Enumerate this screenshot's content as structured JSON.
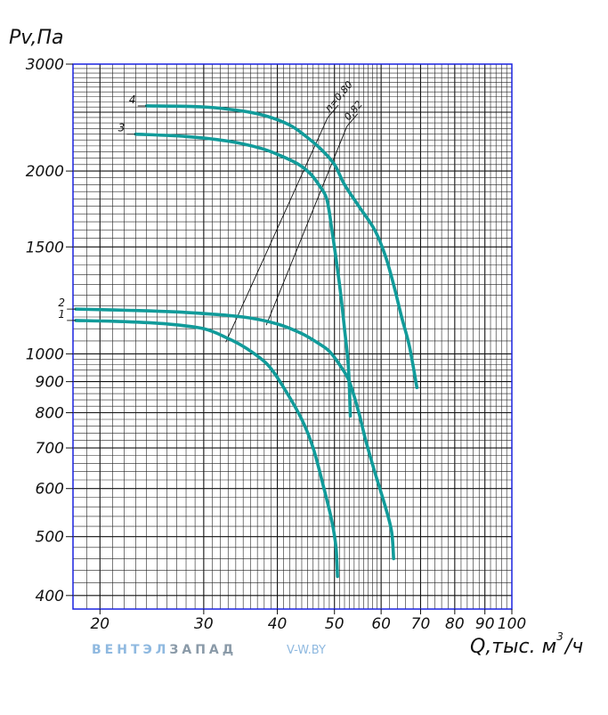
{
  "chart_data": {
    "type": "line",
    "ylabel": "Pv,Па",
    "xlabel": "Q,тыс. м³/ч",
    "xlabel_main": "Q,тыс. м",
    "xlabel_sup": "3",
    "xlabel_tail": "/ч",
    "x_scale": "log",
    "y_scale": "log",
    "xlim": [
      18,
      100
    ],
    "ylim": [
      380,
      3000
    ],
    "grid": true,
    "x_ticks": [
      20,
      30,
      40,
      50,
      60,
      70,
      80,
      90,
      100
    ],
    "y_ticks": [
      400,
      500,
      600,
      700,
      800,
      900,
      1000,
      1500,
      2000,
      3000
    ],
    "series": [
      {
        "name": "1",
        "points": [
          [
            18.2,
            1135
          ],
          [
            22,
            1130
          ],
          [
            26,
            1120
          ],
          [
            30,
            1100
          ],
          [
            33,
            1060
          ],
          [
            35.5,
            1020
          ],
          [
            38.5,
            960
          ],
          [
            41,
            880
          ],
          [
            44,
            780
          ],
          [
            46,
            700
          ],
          [
            48,
            600
          ],
          [
            49.5,
            530
          ],
          [
            50.3,
            480
          ],
          [
            50.6,
            430
          ]
        ]
      },
      {
        "name": "2",
        "points": [
          [
            18.2,
            1185
          ],
          [
            22,
            1180
          ],
          [
            28,
            1170
          ],
          [
            35,
            1150
          ],
          [
            40,
            1120
          ],
          [
            44,
            1080
          ],
          [
            47,
            1040
          ],
          [
            49,
            1010
          ],
          [
            51,
            960
          ],
          [
            53,
            900
          ],
          [
            55,
            800
          ],
          [
            56.5,
            720
          ],
          [
            58.5,
            640
          ],
          [
            61,
            560
          ],
          [
            62.5,
            510
          ],
          [
            63,
            460
          ]
        ]
      },
      {
        "name": "3",
        "points": [
          [
            23,
            2300
          ],
          [
            28,
            2280
          ],
          [
            33,
            2240
          ],
          [
            37.5,
            2180
          ],
          [
            40.5,
            2120
          ],
          [
            43.5,
            2050
          ],
          [
            45.5,
            1980
          ],
          [
            47,
            1900
          ],
          [
            48.5,
            1800
          ],
          [
            49.5,
            1600
          ],
          [
            51,
            1300
          ],
          [
            52,
            1100
          ],
          [
            52.8,
            950
          ],
          [
            53.2,
            790
          ]
        ]
      },
      {
        "name": "4",
        "points": [
          [
            24,
            2560
          ],
          [
            30,
            2550
          ],
          [
            35,
            2510
          ],
          [
            38.5,
            2460
          ],
          [
            42,
            2380
          ],
          [
            44.5,
            2290
          ],
          [
            47.5,
            2170
          ],
          [
            50,
            2050
          ],
          [
            52,
            1900
          ],
          [
            55,
            1750
          ],
          [
            58.5,
            1600
          ],
          [
            61,
            1450
          ],
          [
            63,
            1300
          ],
          [
            65,
            1150
          ],
          [
            67,
            1030
          ],
          [
            69,
            880
          ]
        ]
      }
    ],
    "efficiency_lines": [
      {
        "label": "n=0,80",
        "from": [
          32.7,
          1045
        ],
        "to": [
          48.7,
          2450
        ]
      },
      {
        "label": "0,82",
        "from": [
          38.3,
          1115
        ],
        "to": [
          52.5,
          2370
        ]
      }
    ],
    "line_color": "#119b9a",
    "grid_color": "#2d37e8",
    "frame_color": "#1a22e0"
  },
  "watermark": {
    "brand_part1": "ВЕНТЭЛ",
    "brand_part2": "ЗАПАД",
    "site": "V-W.BY"
  }
}
